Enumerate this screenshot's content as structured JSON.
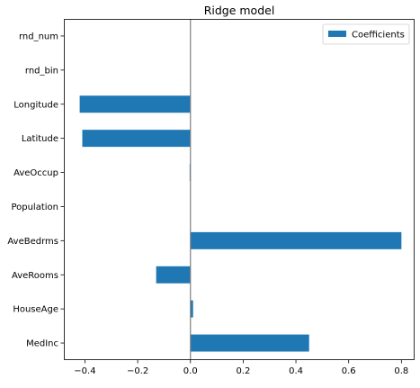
{
  "chart_data": {
    "type": "bar",
    "orientation": "horizontal",
    "title": "Ridge model",
    "xlabel": "",
    "ylabel": "",
    "categories": [
      "MedInc",
      "HouseAge",
      "AveRooms",
      "AveBedrms",
      "Population",
      "AveOccup",
      "Latitude",
      "Longitude",
      "rnd_bin",
      "rnd_num"
    ],
    "series": [
      {
        "name": "Coefficients",
        "values": [
          0.45,
          0.01,
          -0.13,
          0.8,
          0.0,
          -0.003,
          -0.41,
          -0.42,
          0.0,
          0.0
        ]
      }
    ],
    "xlim": [
      -0.48,
      0.85
    ],
    "xticks": [
      -0.4,
      -0.2,
      0.0,
      0.2,
      0.4,
      0.6,
      0.8
    ],
    "xtick_labels": [
      "−0.4",
      "−0.2",
      "0.0",
      "0.2",
      "0.4",
      "0.6",
      "0.8"
    ],
    "zero_line": true,
    "grid": false,
    "legend_position": "top-right"
  },
  "colors": {
    "bar": "#1f77b4",
    "zero_line": "#808080",
    "axes": "#000000",
    "background": "#ffffff"
  }
}
